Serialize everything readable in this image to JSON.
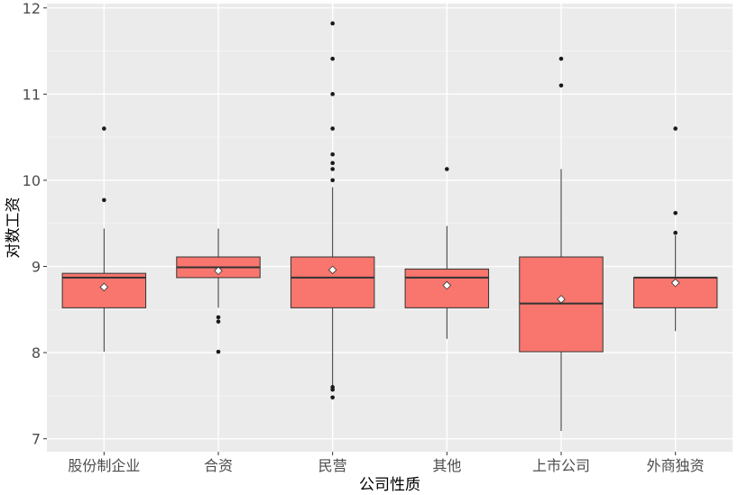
{
  "chart_data": {
    "type": "boxplot",
    "title": "",
    "xlabel": "公司性质",
    "ylabel": "对数工资",
    "ylim": [
      6.85,
      12.05
    ],
    "yticks": [
      7,
      8,
      9,
      10,
      11,
      12
    ],
    "grid": true,
    "colors": {
      "panel": "#ebebeb",
      "grid_major": "#ffffff",
      "grid_minor": "#f5f5f5",
      "box_fill": "#f8766d",
      "box_stroke": "#333333",
      "point": "#1a1a1a",
      "mean_marker": "#ffffff"
    },
    "categories": [
      "股份制企业",
      "合资",
      "民营",
      "其他",
      "上市公司",
      "外商独资"
    ],
    "boxes": [
      {
        "q1": 8.52,
        "median": 8.87,
        "q3": 8.92,
        "whisker_low": 8.01,
        "whisker_high": 9.44,
        "mean": 8.76,
        "outliers": [
          9.77,
          10.6
        ]
      },
      {
        "q1": 8.87,
        "median": 8.99,
        "q3": 9.11,
        "whisker_low": 8.52,
        "whisker_high": 9.44,
        "mean": 8.95,
        "outliers": [
          8.41,
          8.36,
          8.01
        ]
      },
      {
        "q1": 8.52,
        "median": 8.87,
        "q3": 9.11,
        "whisker_low": 7.62,
        "whisker_high": 9.92,
        "mean": 8.96,
        "outliers": [
          10.0,
          10.13,
          10.2,
          10.3,
          10.6,
          11.0,
          11.41,
          11.82,
          7.6,
          7.57,
          7.48
        ]
      },
      {
        "q1": 8.52,
        "median": 8.87,
        "q3": 8.97,
        "whisker_low": 8.16,
        "whisker_high": 9.47,
        "mean": 8.78,
        "outliers": [
          10.13
        ]
      },
      {
        "q1": 8.01,
        "median": 8.57,
        "q3": 9.11,
        "whisker_low": 7.09,
        "whisker_high": 10.13,
        "mean": 8.62,
        "outliers": [
          11.1,
          11.41
        ]
      },
      {
        "q1": 8.52,
        "median": 8.87,
        "q3": 8.87,
        "whisker_low": 8.25,
        "whisker_high": 9.36,
        "mean": 8.81,
        "outliers": [
          9.39,
          9.62,
          10.6
        ]
      }
    ]
  }
}
